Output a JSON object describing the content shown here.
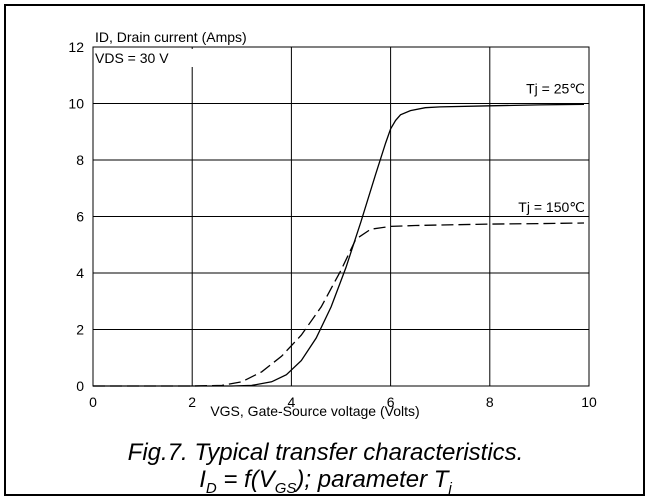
{
  "chart_data": {
    "type": "line",
    "title": "",
    "ylabel": "ID, Drain current (Amps)",
    "xlabel": "VGS, Gate-Source voltage (Volts)",
    "xlim": [
      0,
      10
    ],
    "ylim": [
      0,
      12
    ],
    "xticks": [
      0,
      2,
      4,
      6,
      8,
      10
    ],
    "yticks": [
      0,
      2,
      4,
      6,
      8,
      10,
      12
    ],
    "grid": true,
    "annotations": {
      "condition": "VDS = 30 V"
    },
    "series": [
      {
        "name": "Tj = 25℃",
        "style": "solid",
        "x": [
          0,
          1,
          2,
          2.8,
          3.2,
          3.6,
          3.9,
          4.2,
          4.5,
          4.8,
          5.1,
          5.4,
          5.7,
          5.9,
          6.0,
          6.1,
          6.2,
          6.4,
          6.7,
          7.0,
          8.0,
          9.0,
          9.9
        ],
        "y": [
          0,
          0,
          0,
          0,
          0.02,
          0.15,
          0.4,
          0.9,
          1.7,
          2.8,
          4.2,
          5.8,
          7.5,
          8.6,
          9.1,
          9.4,
          9.6,
          9.75,
          9.85,
          9.88,
          9.92,
          9.95,
          9.97
        ]
      },
      {
        "name": "Tj = 150℃",
        "style": "dashed",
        "x": [
          0,
          1,
          2,
          2.6,
          3.0,
          3.4,
          3.8,
          4.2,
          4.6,
          5.0,
          5.3,
          5.6,
          6.0,
          6.5,
          7.0,
          8.0,
          9.0,
          9.9
        ],
        "y": [
          0,
          0,
          0,
          0.02,
          0.15,
          0.5,
          1.05,
          1.8,
          2.8,
          4.1,
          5.2,
          5.55,
          5.65,
          5.68,
          5.7,
          5.73,
          5.75,
          5.77
        ]
      }
    ],
    "label_colors": {
      "line": "#000000",
      "grid": "#000000",
      "background": "#ffffff"
    }
  },
  "caption": {
    "line1": "Fig.7.  Typical transfer characteristics.",
    "line2_parts": {
      "i": "I",
      "i_sub": "D",
      "mid": " = f(V",
      "v_sub": "GS",
      "after": "); parameter T",
      "t_sub": "j"
    }
  }
}
